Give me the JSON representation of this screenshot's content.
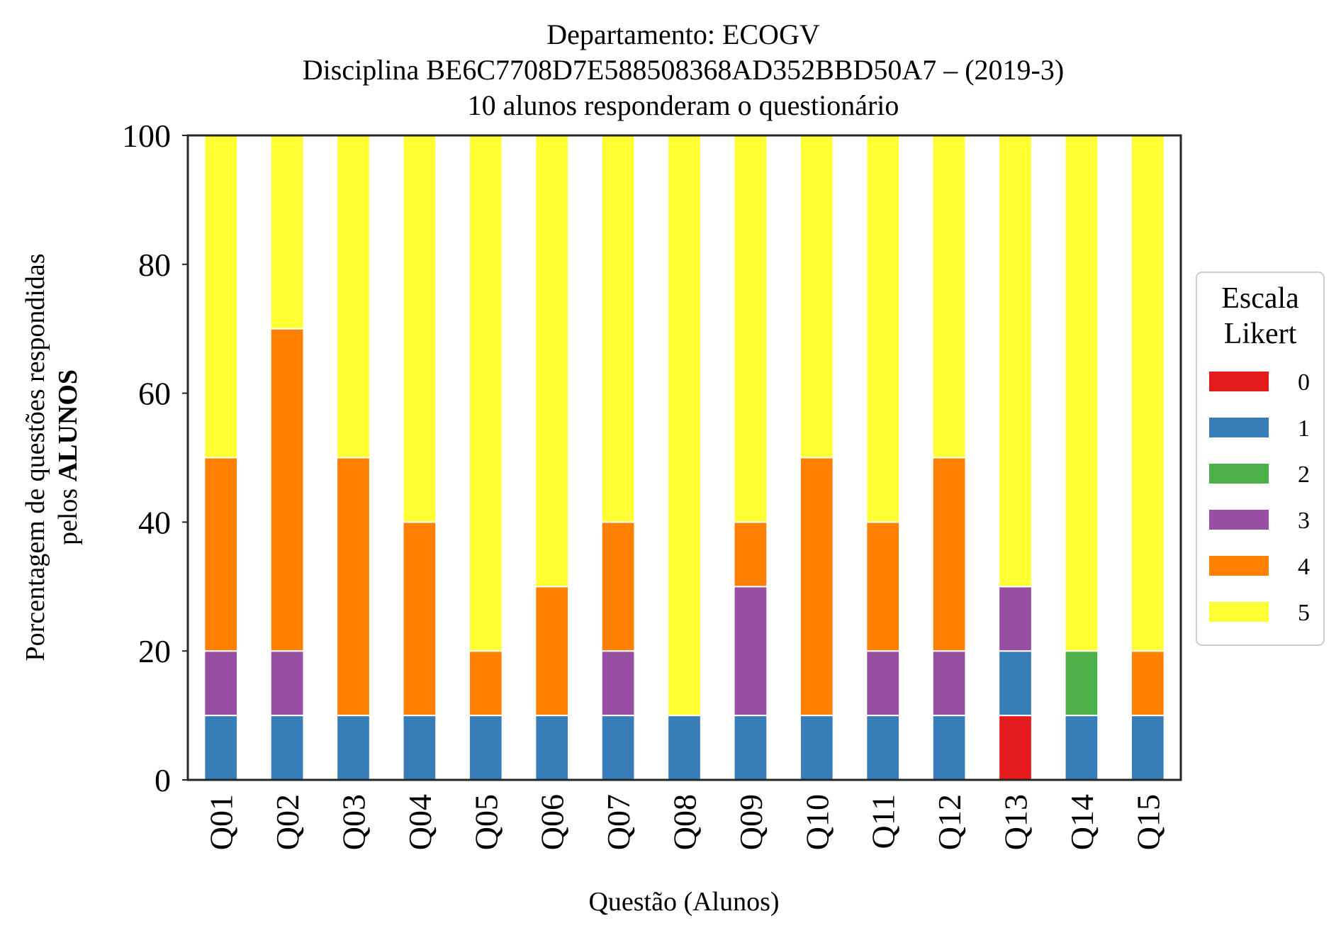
{
  "chart_data": {
    "type": "bar",
    "stacked": true,
    "title": [
      "Departamento: ECOGV",
      "Disciplina BE6C7708D7E588508368AD352BBD50A7 – (2019-3)",
      "10 alunos responderam o questionário"
    ],
    "xlabel": "Questão (Alunos)",
    "ylabel_line1": "Porcentagem de questões respondidas",
    "ylabel_line2_prefix": "pelos ",
    "ylabel_line2_bold": "ALUNOS",
    "ylim": [
      0,
      100
    ],
    "yticks": [
      "0",
      "20",
      "40",
      "60",
      "80",
      "100"
    ],
    "grid": false,
    "legend_placement": "right",
    "legend_title": [
      "Escala",
      "Likert"
    ],
    "categories": [
      "Q01",
      "Q02",
      "Q03",
      "Q04",
      "Q05",
      "Q06",
      "Q07",
      "Q08",
      "Q09",
      "Q10",
      "Q11",
      "Q12",
      "Q13",
      "Q14",
      "Q15"
    ],
    "series": [
      {
        "name": "0",
        "color": "#e41a1c",
        "values": [
          0,
          0,
          0,
          0,
          0,
          0,
          0,
          0,
          0,
          0,
          0,
          0,
          10,
          0,
          0
        ]
      },
      {
        "name": "1",
        "color": "#377eb8",
        "values": [
          10,
          10,
          10,
          10,
          10,
          10,
          10,
          10,
          10,
          10,
          10,
          10,
          10,
          10,
          10
        ]
      },
      {
        "name": "2",
        "color": "#4daf4a",
        "values": [
          0,
          0,
          0,
          0,
          0,
          0,
          0,
          0,
          0,
          0,
          0,
          0,
          0,
          10,
          0
        ]
      },
      {
        "name": "3",
        "color": "#984ea3",
        "values": [
          10,
          10,
          0,
          0,
          0,
          0,
          10,
          0,
          20,
          0,
          10,
          10,
          10,
          0,
          0
        ]
      },
      {
        "name": "4",
        "color": "#ff7f00",
        "values": [
          30,
          50,
          40,
          30,
          10,
          20,
          20,
          0,
          10,
          40,
          20,
          30,
          0,
          0,
          10
        ]
      },
      {
        "name": "5",
        "color": "#ffff33",
        "values": [
          50,
          30,
          50,
          60,
          80,
          70,
          60,
          90,
          60,
          50,
          60,
          50,
          70,
          80,
          80
        ]
      }
    ]
  }
}
